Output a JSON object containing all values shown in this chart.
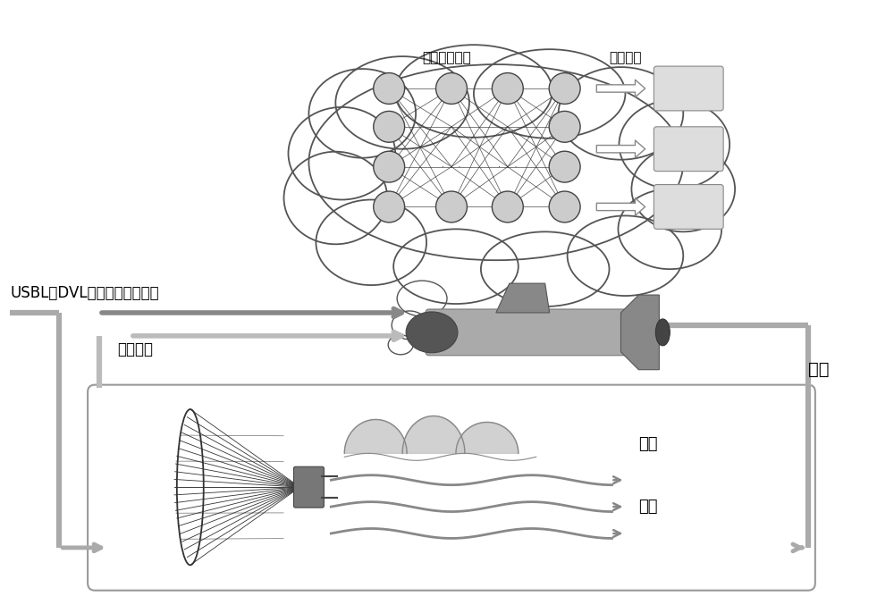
{
  "text_cloud_nn": "深度神经网络",
  "text_cloud_actuator": "执行机构",
  "text_sensor": "USBL、DVL等传感器观测数据",
  "text_reward": "环境奖励",
  "text_action": "动作",
  "text_wave": "海浪",
  "text_current": "海流",
  "bg_color": "#ffffff",
  "cloud_fill": "#ffffff",
  "cloud_edge": "#555555",
  "node_fill": "#cccccc",
  "node_edge": "#444444",
  "nn_line_color": "#333333",
  "auv_body_color": "#aaaaaa",
  "auv_nose_color": "#555555",
  "auv_fin_color": "#777777",
  "box_edge": "#999999",
  "box_fill": "#ffffff",
  "arrow_gray": "#aaaaaa",
  "arrow_dark": "#888888",
  "wave_color": "#999999",
  "flow_color": "#888888",
  "dish_color": "#333333",
  "conn_fill": "#777777",
  "label_fontsize": 13,
  "sensor_fontsize": 12,
  "cloud_label_fontsize": 11
}
